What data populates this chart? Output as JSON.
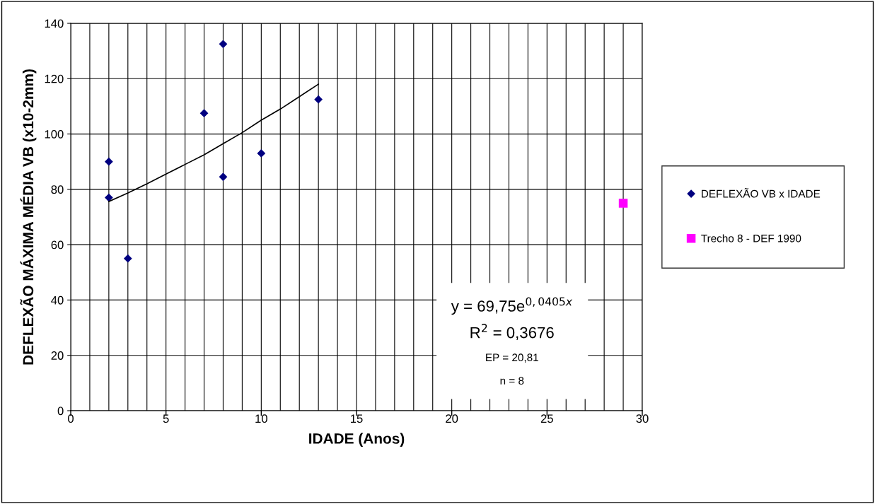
{
  "chart_data": {
    "type": "scatter",
    "xlabel": "IDADE (Anos)",
    "ylabel": "DEFLEXÃO MÁXIMA MÉDIA VB (x10-2mm)",
    "xlim": [
      0,
      30
    ],
    "ylim": [
      0,
      140
    ],
    "xticks": [
      0,
      {
        "value": 1,
        "label": null
      },
      {
        "value": 2,
        "label": null
      },
      {
        "value": 3,
        "label": null
      },
      {
        "value": 4,
        "label": null
      },
      5,
      {
        "value": 6,
        "label": null
      },
      {
        "value": 7,
        "label": null
      },
      {
        "value": 8,
        "label": null
      },
      {
        "value": 9,
        "label": null
      },
      10,
      {
        "value": 11,
        "label": null
      },
      {
        "value": 12,
        "label": null
      },
      {
        "value": 13,
        "label": null
      },
      {
        "value": 14,
        "label": null
      },
      15,
      {
        "value": 16,
        "label": null
      },
      {
        "value": 17,
        "label": null
      },
      {
        "value": 18,
        "label": null
      },
      {
        "value": 19,
        "label": null
      },
      20,
      {
        "value": 21,
        "label": null
      },
      {
        "value": 22,
        "label": null
      },
      {
        "value": 23,
        "label": null
      },
      {
        "value": 24,
        "label": null
      },
      25,
      {
        "value": 26,
        "label": null
      },
      {
        "value": 27,
        "label": null
      },
      {
        "value": 28,
        "label": null
      },
      {
        "value": 29,
        "label": null
      },
      30
    ],
    "yticks": [
      0,
      20,
      40,
      60,
      80,
      100,
      120,
      140
    ],
    "grid": true,
    "legend": "right",
    "series": [
      {
        "name": "DEFLEXÃO VB x IDADE",
        "color": "#000080",
        "marker": "diamond",
        "x": [
          2,
          2,
          3,
          7,
          8,
          8,
          10,
          13
        ],
        "values": [
          90,
          77,
          55,
          107.5,
          132.5,
          84.5,
          93,
          112.5
        ]
      },
      {
        "name": "Trecho 8 - DEF 1990",
        "color": "#ff00ff",
        "marker": "square",
        "x": [
          29
        ],
        "values": [
          75
        ]
      },
      {
        "type": "line",
        "color": "#000000",
        "marker": "none",
        "x": [
          2,
          3,
          4,
          5,
          6,
          7,
          8,
          9,
          10,
          11,
          12,
          13
        ],
        "values": [
          75.6,
          78.7,
          82,
          85.5,
          89,
          92.5,
          96.5,
          100.5,
          105,
          109,
          113.5,
          118
        ]
      }
    ],
    "annotations": [
      "y = 69,75e$^{0,0405x}$",
      "R$^{2}$ = 0,3676",
      "EP = 20,81",
      "n = 8"
    ]
  }
}
